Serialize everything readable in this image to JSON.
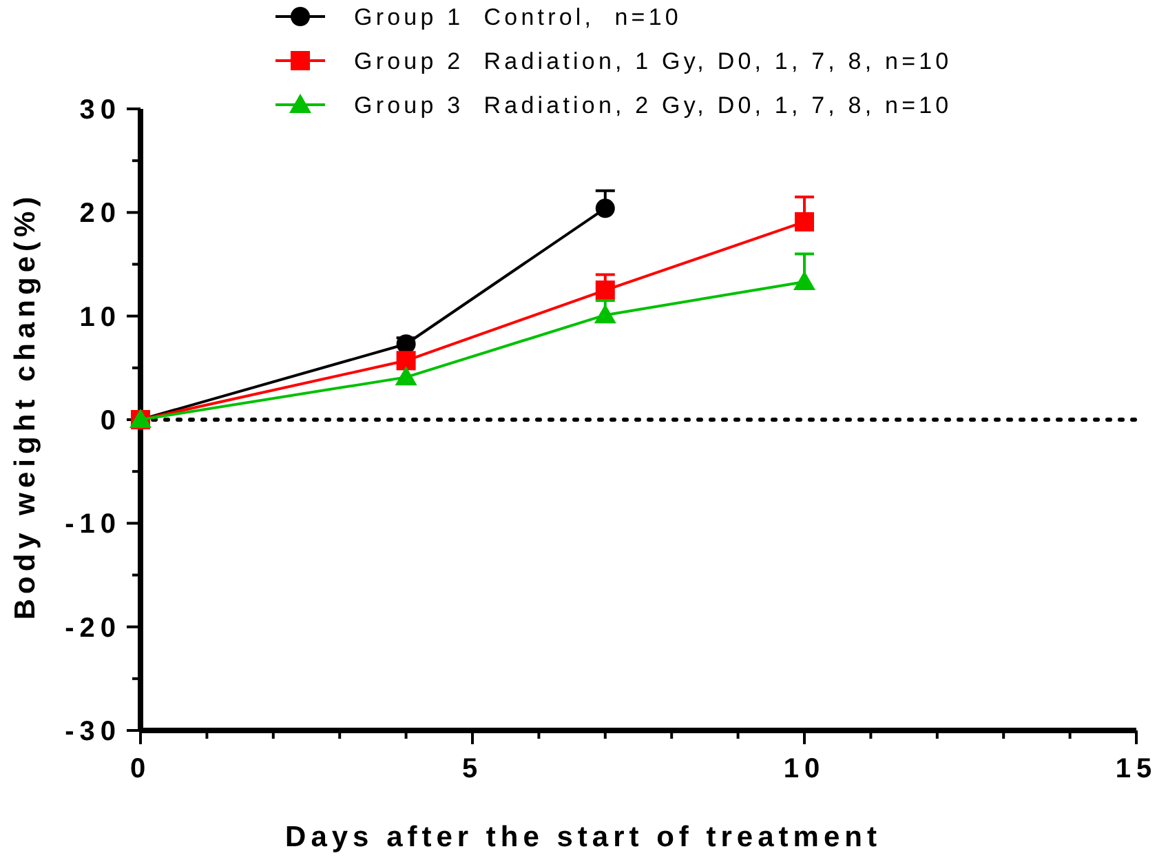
{
  "chart_data": {
    "type": "line",
    "xlabel": "Days after the start of treatment",
    "ylabel": "Body weight change(%)",
    "xlim": [
      0,
      15
    ],
    "xticks": [
      0,
      {
        "value": 1,
        "label": null
      },
      {
        "value": 2,
        "label": null
      },
      {
        "value": 3,
        "label": null
      },
      {
        "value": 4,
        "label": null
      },
      5,
      {
        "value": 6,
        "label": null
      },
      {
        "value": 7,
        "label": null
      },
      {
        "value": 8,
        "label": null
      },
      {
        "value": 9,
        "label": null
      },
      10,
      {
        "value": 11,
        "label": null
      },
      {
        "value": 12,
        "label": null
      },
      {
        "value": 13,
        "label": null
      },
      {
        "value": 14,
        "label": null
      },
      15
    ],
    "ylim": [
      -30,
      30
    ],
    "yticks": [
      -30,
      {
        "value": -25,
        "label": null
      },
      -20,
      {
        "value": -15,
        "label": null
      },
      -10,
      {
        "value": -5,
        "label": null
      },
      0,
      {
        "value": 5,
        "label": null
      },
      10,
      {
        "value": 15,
        "label": null
      },
      20,
      {
        "value": 25,
        "label": null
      },
      30
    ],
    "grid": false,
    "legend": "top",
    "line_style": "solid",
    "ref_lines": [
      {
        "axis": "y",
        "value": 0,
        "line_style": "dotted",
        "color": "#000000"
      }
    ],
    "series": [
      {
        "name": "Group 1  Control,  n=10",
        "color": "#000000",
        "marker": "circle",
        "x": [
          0,
          4,
          7
        ],
        "values": [
          0,
          7.3,
          20.4
        ],
        "errors": [
          null,
          [
            7.3,
            7.9
          ],
          [
            20.4,
            22.1
          ]
        ]
      },
      {
        "name": "Group 2  Radiation, 1 Gy, D0, 1, 7, 8, n=10",
        "color": "#ff0000",
        "marker": "square",
        "x": [
          0,
          4,
          7,
          10
        ],
        "values": [
          0,
          5.7,
          12.5,
          19.1
        ],
        "errors": [
          null,
          null,
          [
            12.5,
            14.0
          ],
          [
            19.1,
            21.5
          ]
        ]
      },
      {
        "name": "Group 3  Radiation, 2 Gy, D0, 1, 7, 8, n=10",
        "color": "#00c000",
        "marker": "triangle",
        "x": [
          0,
          4,
          7,
          10
        ],
        "values": [
          0,
          4.1,
          10.1,
          13.3
        ],
        "errors": [
          null,
          null,
          [
            10.1,
            11.5
          ],
          [
            13.3,
            16.0
          ]
        ]
      }
    ]
  }
}
